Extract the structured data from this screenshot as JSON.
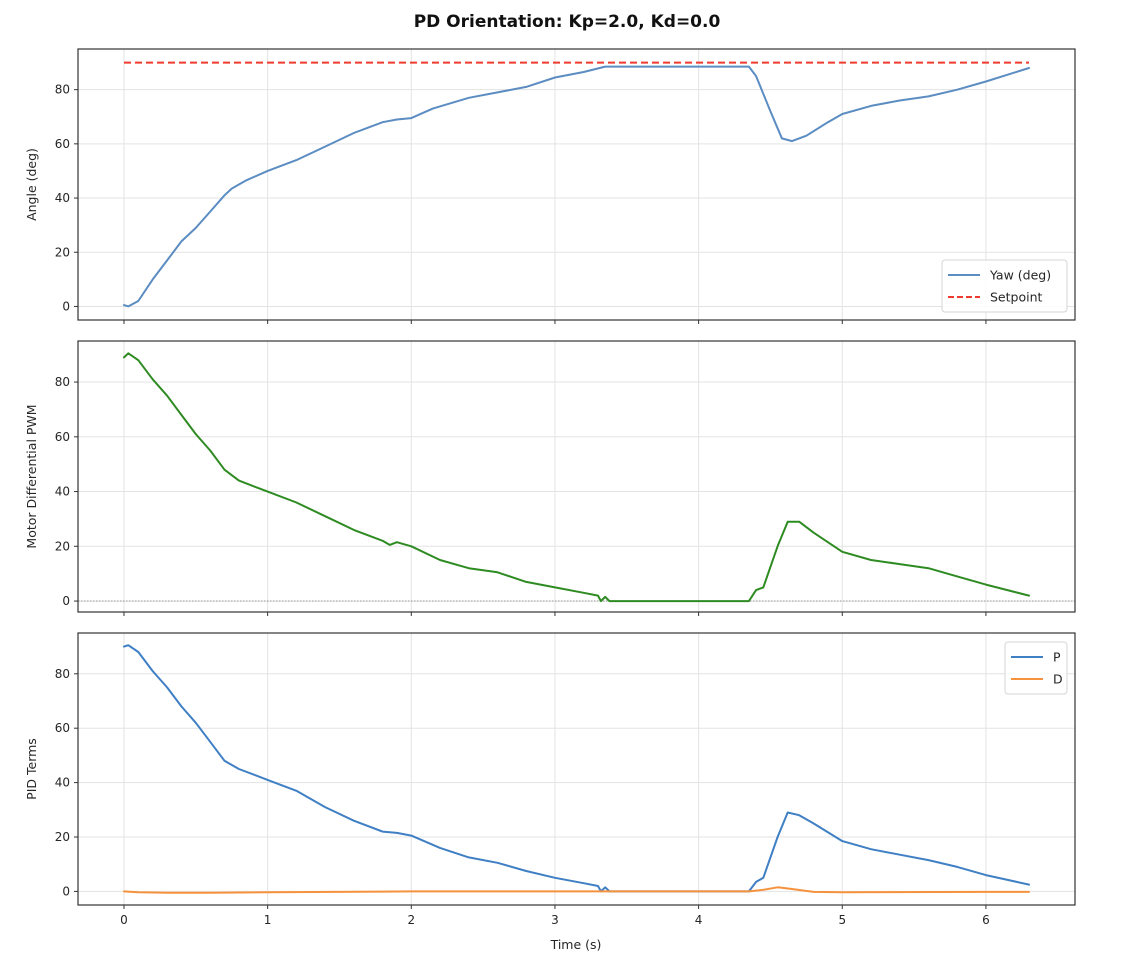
{
  "figure": {
    "title": "PD Orientation: Kp=2.0, Kd=0.0",
    "xlabel": "Time (s)"
  },
  "colors": {
    "yaw": "#5b8cc2",
    "setpoint": "#ee3b2f",
    "pwm": "#2e8b22",
    "p_term": "#3f7fc4",
    "d_term": "#f5923e",
    "grid": "#e3e3e3",
    "frame": "#333333"
  },
  "chart_data": [
    {
      "type": "line",
      "panel": "top",
      "title": "",
      "xlabel": "",
      "ylabel": "Angle (deg)",
      "xlim": [
        -0.32,
        6.62
      ],
      "ylim": [
        -5,
        95
      ],
      "xticks": [
        0,
        1,
        2,
        3,
        4,
        5,
        6
      ],
      "yticks": [
        0,
        20,
        40,
        60,
        80
      ],
      "grid": true,
      "legend_position": "lower right",
      "series": [
        {
          "name": "Yaw (deg)",
          "style": "solid",
          "color_key": "yaw",
          "x": [
            0,
            0.03,
            0.1,
            0.2,
            0.3,
            0.4,
            0.5,
            0.6,
            0.7,
            0.75,
            0.85,
            1.0,
            1.2,
            1.4,
            1.6,
            1.8,
            1.9,
            2.0,
            2.15,
            2.4,
            2.6,
            2.8,
            3.0,
            3.2,
            3.35,
            3.5,
            4.0,
            4.35,
            4.4,
            4.5,
            4.58,
            4.65,
            4.75,
            4.9,
            5.0,
            5.2,
            5.4,
            5.6,
            5.8,
            6.0,
            6.3
          ],
          "y": [
            0.5,
            0,
            2,
            10,
            17,
            24,
            29,
            35,
            41,
            43.5,
            46.5,
            50,
            54,
            59,
            64,
            68,
            69,
            69.5,
            73,
            77,
            79,
            81,
            84.5,
            86.5,
            88.5,
            88.5,
            88.5,
            88.5,
            85,
            72,
            62,
            61,
            63,
            68,
            71,
            74,
            76,
            77.5,
            80,
            83,
            88
          ]
        },
        {
          "name": "Setpoint",
          "style": "dashed",
          "color_key": "setpoint",
          "x": [
            0,
            6.3
          ],
          "y": [
            90,
            90
          ]
        }
      ]
    },
    {
      "type": "line",
      "panel": "middle",
      "title": "",
      "xlabel": "",
      "ylabel": "Motor Differential PWM",
      "xlim": [
        -0.32,
        6.62
      ],
      "ylim": [
        -4,
        95
      ],
      "xticks": [
        0,
        1,
        2,
        3,
        4,
        5,
        6
      ],
      "yticks": [
        0,
        20,
        40,
        60,
        80
      ],
      "grid": true,
      "zero_line": true,
      "series": [
        {
          "name": "Motor Differential PWM",
          "style": "solid",
          "color_key": "pwm",
          "x": [
            0,
            0.03,
            0.1,
            0.2,
            0.3,
            0.4,
            0.5,
            0.6,
            0.7,
            0.8,
            1.0,
            1.2,
            1.4,
            1.6,
            1.8,
            1.85,
            1.9,
            2.0,
            2.2,
            2.4,
            2.6,
            2.8,
            3.0,
            3.2,
            3.3,
            3.32,
            3.35,
            3.38,
            4.0,
            4.35,
            4.4,
            4.45,
            4.55,
            4.62,
            4.7,
            4.8,
            5.0,
            5.2,
            5.4,
            5.6,
            5.8,
            6.0,
            6.3
          ],
          "y": [
            89,
            90.5,
            88,
            81,
            75,
            68,
            61,
            55,
            48,
            44,
            40,
            36,
            31,
            26,
            22,
            20.5,
            21.5,
            20,
            15,
            12,
            10.5,
            7,
            5,
            3,
            2,
            0,
            1.5,
            0,
            0,
            0,
            4,
            5,
            20,
            29,
            29,
            25,
            18,
            15,
            13.5,
            12,
            9,
            6,
            2
          ]
        }
      ]
    },
    {
      "type": "line",
      "panel": "bottom",
      "title": "",
      "xlabel": "Time (s)",
      "ylabel": "PID Terms",
      "xlim": [
        -0.32,
        6.62
      ],
      "ylim": [
        -5,
        95
      ],
      "xticks": [
        0,
        1,
        2,
        3,
        4,
        5,
        6
      ],
      "yticks": [
        0,
        20,
        40,
        60,
        80
      ],
      "grid": true,
      "legend_position": "upper right",
      "series": [
        {
          "name": "P",
          "style": "solid",
          "color_key": "p_term",
          "x": [
            0,
            0.03,
            0.1,
            0.2,
            0.3,
            0.4,
            0.5,
            0.6,
            0.7,
            0.8,
            1.0,
            1.2,
            1.4,
            1.6,
            1.8,
            1.9,
            2.0,
            2.2,
            2.4,
            2.6,
            2.8,
            3.0,
            3.2,
            3.3,
            3.32,
            3.35,
            3.38,
            4.0,
            4.35,
            4.4,
            4.45,
            4.55,
            4.62,
            4.7,
            4.8,
            5.0,
            5.2,
            5.4,
            5.6,
            5.8,
            6.0,
            6.3
          ],
          "y": [
            90,
            90.5,
            88,
            81,
            75,
            68,
            62,
            55,
            48,
            45,
            41,
            37,
            31,
            26,
            22,
            21.5,
            20.5,
            16,
            12.5,
            10.5,
            7.5,
            5,
            3,
            2,
            0,
            1.5,
            0,
            0,
            0,
            3.5,
            5,
            20,
            29,
            28,
            25,
            18.5,
            15.5,
            13.5,
            11.5,
            9,
            6,
            2.5
          ]
        },
        {
          "name": "D",
          "style": "solid",
          "color_key": "d_term",
          "x": [
            0,
            0.1,
            0.3,
            0.6,
            1.0,
            2.0,
            3.0,
            4.0,
            4.35,
            4.45,
            4.55,
            4.65,
            4.8,
            5.0,
            6.0,
            6.3
          ],
          "y": [
            0,
            -0.3,
            -0.5,
            -0.5,
            -0.3,
            0,
            0,
            0,
            0,
            0.6,
            1.5,
            0.9,
            -0.2,
            -0.3,
            -0.2,
            -0.2
          ]
        }
      ]
    }
  ]
}
